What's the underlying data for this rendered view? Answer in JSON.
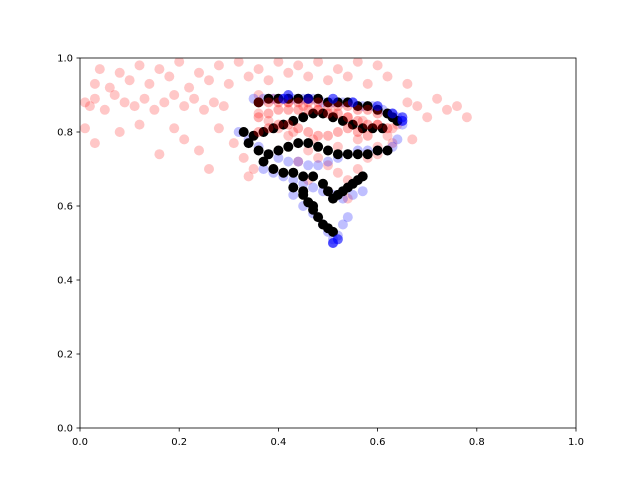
{
  "chart_data": {
    "type": "scatter",
    "title": "",
    "xlabel": "",
    "ylabel": "",
    "xlim": [
      0,
      1
    ],
    "ylim": [
      0,
      1
    ],
    "grid": false,
    "legend": "none",
    "xticks": [
      "0.0",
      "0.2",
      "0.4",
      "0.6",
      "0.8",
      "1.0"
    ],
    "yticks": [
      "0.0",
      "0.2",
      "0.4",
      "0.6",
      "0.8",
      "1.0"
    ],
    "series": [
      {
        "color": "#ff0000",
        "opacity": 0.22,
        "points": [
          [
            0.01,
            0.88
          ],
          [
            0.02,
            0.87
          ],
          [
            0.03,
            0.89
          ],
          [
            0.05,
            0.86
          ],
          [
            0.07,
            0.9
          ],
          [
            0.09,
            0.88
          ],
          [
            0.11,
            0.87
          ],
          [
            0.13,
            0.89
          ],
          [
            0.15,
            0.86
          ],
          [
            0.17,
            0.88
          ],
          [
            0.19,
            0.9
          ],
          [
            0.21,
            0.87
          ],
          [
            0.23,
            0.89
          ],
          [
            0.25,
            0.86
          ],
          [
            0.27,
            0.88
          ],
          [
            0.29,
            0.87
          ],
          [
            0.04,
            0.97
          ],
          [
            0.08,
            0.96
          ],
          [
            0.12,
            0.98
          ],
          [
            0.16,
            0.97
          ],
          [
            0.2,
            0.99
          ],
          [
            0.24,
            0.96
          ],
          [
            0.28,
            0.98
          ],
          [
            0.32,
            0.99
          ],
          [
            0.36,
            0.97
          ],
          [
            0.4,
            0.99
          ],
          [
            0.44,
            0.98
          ],
          [
            0.48,
            0.99
          ],
          [
            0.52,
            0.97
          ],
          [
            0.56,
            0.99
          ],
          [
            0.6,
            0.98
          ],
          [
            0.03,
            0.93
          ],
          [
            0.06,
            0.92
          ],
          [
            0.1,
            0.94
          ],
          [
            0.14,
            0.93
          ],
          [
            0.18,
            0.95
          ],
          [
            0.22,
            0.92
          ],
          [
            0.26,
            0.94
          ],
          [
            0.3,
            0.93
          ],
          [
            0.34,
            0.95
          ],
          [
            0.38,
            0.94
          ],
          [
            0.42,
            0.96
          ],
          [
            0.46,
            0.95
          ],
          [
            0.5,
            0.94
          ],
          [
            0.54,
            0.95
          ],
          [
            0.58,
            0.93
          ],
          [
            0.62,
            0.95
          ],
          [
            0.66,
            0.93
          ],
          [
            0.01,
            0.81
          ],
          [
            0.03,
            0.77
          ],
          [
            0.08,
            0.8
          ],
          [
            0.12,
            0.82
          ],
          [
            0.16,
            0.74
          ],
          [
            0.19,
            0.81
          ],
          [
            0.21,
            0.78
          ],
          [
            0.24,
            0.75
          ],
          [
            0.26,
            0.7
          ],
          [
            0.28,
            0.81
          ],
          [
            0.31,
            0.77
          ],
          [
            0.33,
            0.73
          ],
          [
            0.35,
            0.7
          ],
          [
            0.34,
            0.68
          ],
          [
            0.36,
            0.85
          ],
          [
            0.38,
            0.83
          ],
          [
            0.4,
            0.81
          ],
          [
            0.42,
            0.79
          ],
          [
            0.44,
            0.77
          ],
          [
            0.46,
            0.75
          ],
          [
            0.48,
            0.73
          ],
          [
            0.5,
            0.71
          ],
          [
            0.52,
            0.69
          ],
          [
            0.54,
            0.67
          ],
          [
            0.56,
            0.7
          ],
          [
            0.58,
            0.73
          ],
          [
            0.6,
            0.76
          ],
          [
            0.62,
            0.79
          ],
          [
            0.64,
            0.82
          ],
          [
            0.36,
            0.9
          ],
          [
            0.39,
            0.89
          ],
          [
            0.42,
            0.88
          ],
          [
            0.45,
            0.87
          ],
          [
            0.48,
            0.86
          ],
          [
            0.51,
            0.85
          ],
          [
            0.54,
            0.84
          ],
          [
            0.57,
            0.83
          ],
          [
            0.6,
            0.82
          ],
          [
            0.63,
            0.81
          ],
          [
            0.66,
            0.88
          ],
          [
            0.68,
            0.87
          ],
          [
            0.7,
            0.84
          ],
          [
            0.72,
            0.89
          ],
          [
            0.74,
            0.86
          ],
          [
            0.76,
            0.87
          ],
          [
            0.78,
            0.84
          ],
          [
            0.67,
            0.78
          ],
          [
            0.63,
            0.77
          ],
          [
            0.4,
            0.75
          ],
          [
            0.44,
            0.72
          ],
          [
            0.46,
            0.67
          ],
          [
            0.5,
            0.64
          ],
          [
            0.54,
            0.62
          ],
          [
            0.39,
            0.7
          ],
          [
            0.43,
            0.8
          ],
          [
            0.47,
            0.78
          ],
          [
            0.52,
            0.76
          ],
          [
            0.56,
            0.78
          ],
          [
            0.6,
            0.74
          ]
        ]
      },
      {
        "color": "#0000ff",
        "opacity": 0.25,
        "points": [
          [
            0.35,
            0.89
          ],
          [
            0.37,
            0.89
          ],
          [
            0.39,
            0.89
          ],
          [
            0.41,
            0.89
          ],
          [
            0.43,
            0.89
          ],
          [
            0.45,
            0.89
          ],
          [
            0.47,
            0.89
          ],
          [
            0.49,
            0.88
          ],
          [
            0.51,
            0.88
          ],
          [
            0.53,
            0.88
          ],
          [
            0.55,
            0.88
          ],
          [
            0.57,
            0.87
          ],
          [
            0.59,
            0.87
          ],
          [
            0.61,
            0.86
          ],
          [
            0.63,
            0.85
          ],
          [
            0.64,
            0.84
          ],
          [
            0.65,
            0.83
          ],
          [
            0.65,
            0.82
          ],
          [
            0.32,
            0.8
          ],
          [
            0.34,
            0.78
          ],
          [
            0.36,
            0.76
          ],
          [
            0.38,
            0.74
          ],
          [
            0.4,
            0.73
          ],
          [
            0.42,
            0.72
          ],
          [
            0.44,
            0.72
          ],
          [
            0.46,
            0.71
          ],
          [
            0.48,
            0.71
          ],
          [
            0.5,
            0.72
          ],
          [
            0.52,
            0.73
          ],
          [
            0.54,
            0.74
          ],
          [
            0.56,
            0.75
          ],
          [
            0.58,
            0.75
          ],
          [
            0.6,
            0.75
          ],
          [
            0.62,
            0.75
          ],
          [
            0.63,
            0.76
          ],
          [
            0.64,
            0.78
          ],
          [
            0.37,
            0.7
          ],
          [
            0.39,
            0.69
          ],
          [
            0.41,
            0.68
          ],
          [
            0.43,
            0.67
          ],
          [
            0.45,
            0.66
          ],
          [
            0.47,
            0.65
          ],
          [
            0.49,
            0.64
          ],
          [
            0.51,
            0.63
          ],
          [
            0.53,
            0.62
          ],
          [
            0.55,
            0.63
          ],
          [
            0.57,
            0.64
          ],
          [
            0.43,
            0.63
          ],
          [
            0.45,
            0.6
          ],
          [
            0.47,
            0.58
          ],
          [
            0.49,
            0.55
          ],
          [
            0.5,
            0.53
          ],
          [
            0.51,
            0.51
          ],
          [
            0.51,
            0.5
          ],
          [
            0.52,
            0.52
          ],
          [
            0.53,
            0.55
          ],
          [
            0.54,
            0.57
          ]
        ]
      },
      {
        "color": "#000000",
        "opacity": 1.0,
        "points": [
          [
            0.36,
            0.88
          ],
          [
            0.38,
            0.89
          ],
          [
            0.4,
            0.89
          ],
          [
            0.42,
            0.89
          ],
          [
            0.44,
            0.89
          ],
          [
            0.46,
            0.89
          ],
          [
            0.48,
            0.89
          ],
          [
            0.5,
            0.88
          ],
          [
            0.52,
            0.88
          ],
          [
            0.54,
            0.88
          ],
          [
            0.56,
            0.87
          ],
          [
            0.58,
            0.87
          ],
          [
            0.6,
            0.86
          ],
          [
            0.62,
            0.85
          ],
          [
            0.63,
            0.84
          ],
          [
            0.64,
            0.83
          ],
          [
            0.33,
            0.8
          ],
          [
            0.35,
            0.79
          ],
          [
            0.37,
            0.8
          ],
          [
            0.39,
            0.81
          ],
          [
            0.41,
            0.82
          ],
          [
            0.43,
            0.83
          ],
          [
            0.45,
            0.84
          ],
          [
            0.47,
            0.85
          ],
          [
            0.49,
            0.85
          ],
          [
            0.51,
            0.84
          ],
          [
            0.53,
            0.83
          ],
          [
            0.55,
            0.82
          ],
          [
            0.57,
            0.81
          ],
          [
            0.59,
            0.81
          ],
          [
            0.61,
            0.81
          ],
          [
            0.34,
            0.77
          ],
          [
            0.36,
            0.75
          ],
          [
            0.38,
            0.74
          ],
          [
            0.4,
            0.75
          ],
          [
            0.42,
            0.76
          ],
          [
            0.44,
            0.77
          ],
          [
            0.46,
            0.77
          ],
          [
            0.48,
            0.76
          ],
          [
            0.5,
            0.75
          ],
          [
            0.52,
            0.74
          ],
          [
            0.54,
            0.74
          ],
          [
            0.56,
            0.74
          ],
          [
            0.58,
            0.74
          ],
          [
            0.6,
            0.75
          ],
          [
            0.62,
            0.75
          ],
          [
            0.37,
            0.72
          ],
          [
            0.39,
            0.7
          ],
          [
            0.41,
            0.69
          ],
          [
            0.43,
            0.69
          ],
          [
            0.45,
            0.68
          ],
          [
            0.47,
            0.68
          ],
          [
            0.49,
            0.66
          ],
          [
            0.5,
            0.64
          ],
          [
            0.51,
            0.62
          ],
          [
            0.52,
            0.63
          ],
          [
            0.53,
            0.64
          ],
          [
            0.54,
            0.65
          ],
          [
            0.55,
            0.66
          ],
          [
            0.56,
            0.67
          ],
          [
            0.57,
            0.68
          ],
          [
            0.43,
            0.65
          ],
          [
            0.45,
            0.63
          ],
          [
            0.46,
            0.61
          ],
          [
            0.47,
            0.59
          ],
          [
            0.48,
            0.57
          ],
          [
            0.49,
            0.55
          ],
          [
            0.5,
            0.54
          ],
          [
            0.51,
            0.53
          ],
          [
            0.47,
            0.6
          ],
          [
            0.45,
            0.64
          ]
        ]
      },
      {
        "color": "#ff0000",
        "opacity": 0.3,
        "points": [
          [
            0.36,
            0.88
          ],
          [
            0.38,
            0.88
          ],
          [
            0.4,
            0.88
          ],
          [
            0.42,
            0.88
          ],
          [
            0.44,
            0.88
          ],
          [
            0.46,
            0.88
          ],
          [
            0.48,
            0.88
          ],
          [
            0.5,
            0.87
          ],
          [
            0.52,
            0.87
          ],
          [
            0.54,
            0.87
          ],
          [
            0.56,
            0.86
          ],
          [
            0.58,
            0.86
          ],
          [
            0.6,
            0.85
          ],
          [
            0.36,
            0.84
          ],
          [
            0.38,
            0.85
          ],
          [
            0.4,
            0.86
          ],
          [
            0.42,
            0.86
          ],
          [
            0.44,
            0.86
          ],
          [
            0.46,
            0.86
          ],
          [
            0.48,
            0.86
          ],
          [
            0.5,
            0.85
          ],
          [
            0.52,
            0.85
          ],
          [
            0.54,
            0.84
          ],
          [
            0.56,
            0.83
          ],
          [
            0.58,
            0.82
          ],
          [
            0.6,
            0.82
          ],
          [
            0.62,
            0.81
          ],
          [
            0.36,
            0.8
          ],
          [
            0.38,
            0.81
          ],
          [
            0.4,
            0.82
          ],
          [
            0.42,
            0.82
          ],
          [
            0.44,
            0.81
          ],
          [
            0.46,
            0.8
          ],
          [
            0.48,
            0.79
          ],
          [
            0.5,
            0.79
          ],
          [
            0.52,
            0.8
          ],
          [
            0.54,
            0.81
          ],
          [
            0.56,
            0.8
          ],
          [
            0.58,
            0.79
          ]
        ]
      },
      {
        "color": "#0000ff",
        "opacity": 0.6,
        "points": [
          [
            0.41,
            0.89
          ],
          [
            0.42,
            0.9
          ],
          [
            0.46,
            0.89
          ],
          [
            0.51,
            0.89
          ],
          [
            0.55,
            0.88
          ],
          [
            0.6,
            0.87
          ],
          [
            0.63,
            0.85
          ],
          [
            0.65,
            0.84
          ],
          [
            0.65,
            0.83
          ],
          [
            0.51,
            0.5
          ],
          [
            0.52,
            0.51
          ]
        ]
      }
    ]
  }
}
